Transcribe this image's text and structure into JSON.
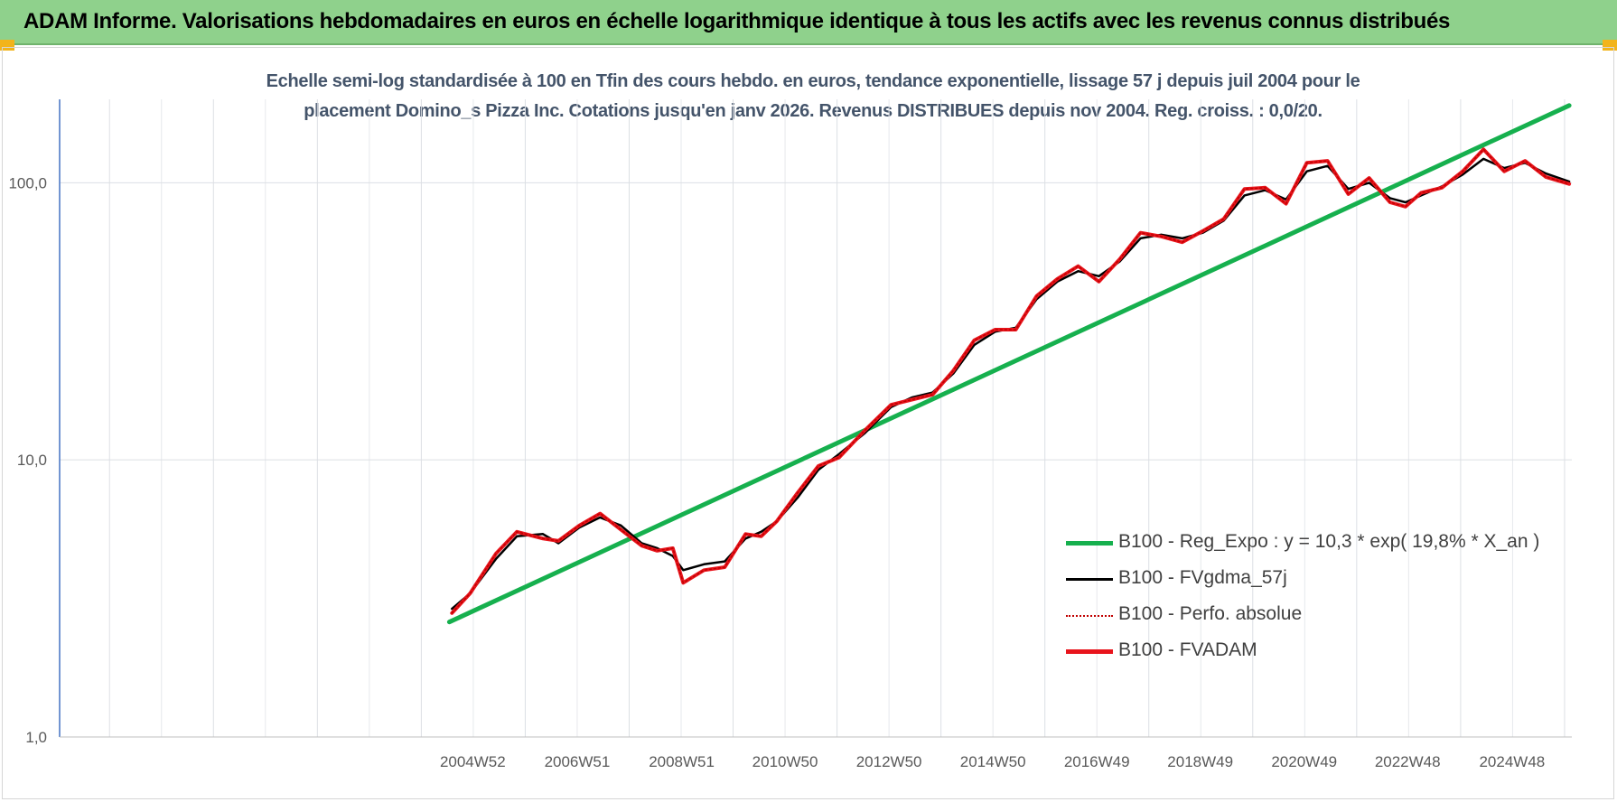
{
  "header": {
    "title": "ADAM Informe. Valorisations hebdomadaires en euros en échelle logarithmique identique à tous les actifs avec les revenus connus distribués",
    "background": "#8fd18c"
  },
  "chart_data": {
    "type": "line",
    "title_lines": [
      "Echelle semi-log standardisée à 100 en Tfin des cours hebdo. en euros, tendance exponentielle, lissage 57 j depuis juil 2004 pour le",
      "placement Domino_s Pizza Inc. Cotations jusqu'en janv 2026. Revenus DISTRIBUES depuis nov 2004. Reg. croiss. : 0,0/20."
    ],
    "y_scale": "log",
    "ylim": [
      1,
      200
    ],
    "y_ticks": [
      {
        "value": 1,
        "label": "1,0"
      },
      {
        "value": 10,
        "label": "10,0"
      },
      {
        "value": 100,
        "label": "100,0"
      }
    ],
    "x_range": [
      1997.0,
      2026.1
    ],
    "x_ticks": [
      {
        "x": 2004.95,
        "label": "2004W52"
      },
      {
        "x": 2006.96,
        "label": "2006W51"
      },
      {
        "x": 2008.97,
        "label": "2008W51"
      },
      {
        "x": 2010.96,
        "label": "2010W50"
      },
      {
        "x": 2012.96,
        "label": "2012W50"
      },
      {
        "x": 2014.96,
        "label": "2014W50"
      },
      {
        "x": 2016.96,
        "label": "2016W49"
      },
      {
        "x": 2018.95,
        "label": "2018W49"
      },
      {
        "x": 2020.95,
        "label": "2020W49"
      },
      {
        "x": 2022.94,
        "label": "2022W48"
      },
      {
        "x": 2024.95,
        "label": "2024W48"
      }
    ],
    "grid": "vertical and horizontal",
    "legend_position": "bottom-right",
    "series": [
      {
        "name": "B100 - Reg_Expo : y = 10,3 * exp( 19,8% *  X_an )",
        "color": "#16b04e",
        "style": "solid",
        "width": 5,
        "x": [
          2004.5,
          2026.05
        ],
        "y": [
          2.6,
          190
        ]
      },
      {
        "name": "B100 - FVgdma_57j",
        "color": "#000000",
        "style": "solid",
        "width": 2.5,
        "x": [
          2004.55,
          2004.9,
          2005.4,
          2005.8,
          2006.3,
          2006.6,
          2007.0,
          2007.4,
          2007.8,
          2008.2,
          2008.5,
          2008.8,
          2009.0,
          2009.4,
          2009.8,
          2010.2,
          2010.5,
          2010.8,
          2011.2,
          2011.6,
          2012.0,
          2012.5,
          2013.0,
          2013.4,
          2013.8,
          2014.2,
          2014.6,
          2015.0,
          2015.4,
          2015.8,
          2016.2,
          2016.6,
          2017.0,
          2017.4,
          2017.8,
          2018.2,
          2018.6,
          2019.0,
          2019.4,
          2019.8,
          2020.2,
          2020.6,
          2021.0,
          2021.4,
          2021.8,
          2022.2,
          2022.6,
          2022.9,
          2023.2,
          2023.6,
          2024.0,
          2024.4,
          2024.8,
          2025.2,
          2025.6,
          2026.05
        ],
        "y": [
          2.9,
          3.3,
          4.4,
          5.3,
          5.4,
          5.0,
          5.7,
          6.2,
          5.8,
          5.0,
          4.8,
          4.5,
          4.0,
          4.2,
          4.3,
          5.2,
          5.5,
          6.0,
          7.3,
          9.2,
          10.5,
          12.5,
          15.5,
          16.8,
          17.5,
          20.5,
          26.0,
          29.0,
          30.0,
          38.0,
          44.0,
          48.0,
          46.0,
          52.0,
          63.0,
          65.0,
          63.0,
          66.0,
          73.0,
          90.0,
          94.0,
          87.0,
          110.0,
          115.0,
          95.0,
          100.0,
          88.0,
          85.0,
          90.0,
          97.0,
          107.0,
          122.0,
          113.0,
          118.0,
          108.0,
          101.0
        ]
      },
      {
        "name": "B100 - Perfo. absolue",
        "color": "#c00000",
        "style": "dotted",
        "width": 1.5,
        "x": [
          2004.55,
          2004.9,
          2005.4,
          2005.8,
          2006.3,
          2006.6,
          2007.0,
          2007.4,
          2007.8,
          2008.2,
          2008.5,
          2008.8,
          2009.0,
          2009.4,
          2009.8,
          2010.2,
          2010.5,
          2010.8,
          2011.2,
          2011.6,
          2012.0,
          2012.5,
          2013.0,
          2013.4,
          2013.8,
          2014.2,
          2014.6,
          2015.0,
          2015.4,
          2015.8,
          2016.2,
          2016.6,
          2017.0,
          2017.4,
          2017.8,
          2018.2,
          2018.6,
          2019.0,
          2019.4,
          2019.8,
          2020.2,
          2020.6,
          2021.0,
          2021.4,
          2021.8,
          2022.2,
          2022.6,
          2022.9,
          2023.2,
          2023.6,
          2024.0,
          2024.4,
          2024.8,
          2025.2,
          2025.6,
          2026.05
        ],
        "y": [
          2.8,
          3.3,
          4.6,
          5.5,
          5.2,
          5.1,
          5.8,
          6.4,
          5.6,
          4.9,
          4.7,
          4.8,
          3.6,
          4.0,
          4.1,
          5.4,
          5.3,
          6.0,
          7.6,
          9.5,
          10.2,
          12.8,
          15.8,
          16.5,
          17.2,
          21.0,
          27.0,
          29.5,
          29.5,
          39.0,
          45.0,
          50.0,
          44.0,
          53.0,
          66.0,
          64.0,
          61.0,
          67.0,
          74.0,
          95.0,
          96.0,
          84.0,
          118.0,
          120.0,
          91.0,
          104.0,
          85.0,
          82.0,
          92.0,
          96.0,
          110.0,
          132.0,
          110.0,
          120.0,
          105.0,
          99.0
        ]
      },
      {
        "name": "B100 - FVADAM",
        "color": "#e8141c",
        "style": "solid",
        "width": 4,
        "x": [
          2004.55,
          2004.9,
          2005.4,
          2005.8,
          2006.3,
          2006.6,
          2007.0,
          2007.4,
          2007.8,
          2008.2,
          2008.5,
          2008.8,
          2009.0,
          2009.4,
          2009.8,
          2010.2,
          2010.5,
          2010.8,
          2011.2,
          2011.6,
          2012.0,
          2012.5,
          2013.0,
          2013.4,
          2013.8,
          2014.2,
          2014.6,
          2015.0,
          2015.4,
          2015.8,
          2016.2,
          2016.6,
          2017.0,
          2017.4,
          2017.8,
          2018.2,
          2018.6,
          2019.0,
          2019.4,
          2019.8,
          2020.2,
          2020.6,
          2021.0,
          2021.4,
          2021.8,
          2022.2,
          2022.6,
          2022.9,
          2023.2,
          2023.6,
          2024.0,
          2024.4,
          2024.8,
          2025.2,
          2025.6,
          2026.05
        ],
        "y": [
          2.8,
          3.3,
          4.6,
          5.5,
          5.2,
          5.1,
          5.8,
          6.4,
          5.6,
          4.9,
          4.7,
          4.8,
          3.6,
          4.0,
          4.1,
          5.4,
          5.3,
          6.0,
          7.6,
          9.5,
          10.2,
          12.8,
          15.8,
          16.5,
          17.2,
          21.0,
          27.0,
          29.5,
          29.5,
          39.0,
          45.0,
          50.0,
          44.0,
          53.0,
          66.0,
          64.0,
          61.0,
          67.0,
          74.0,
          95.0,
          96.0,
          84.0,
          118.0,
          120.0,
          91.0,
          104.0,
          85.0,
          82.0,
          92.0,
          96.0,
          110.0,
          132.0,
          110.0,
          120.0,
          105.0,
          99.0
        ]
      }
    ]
  }
}
